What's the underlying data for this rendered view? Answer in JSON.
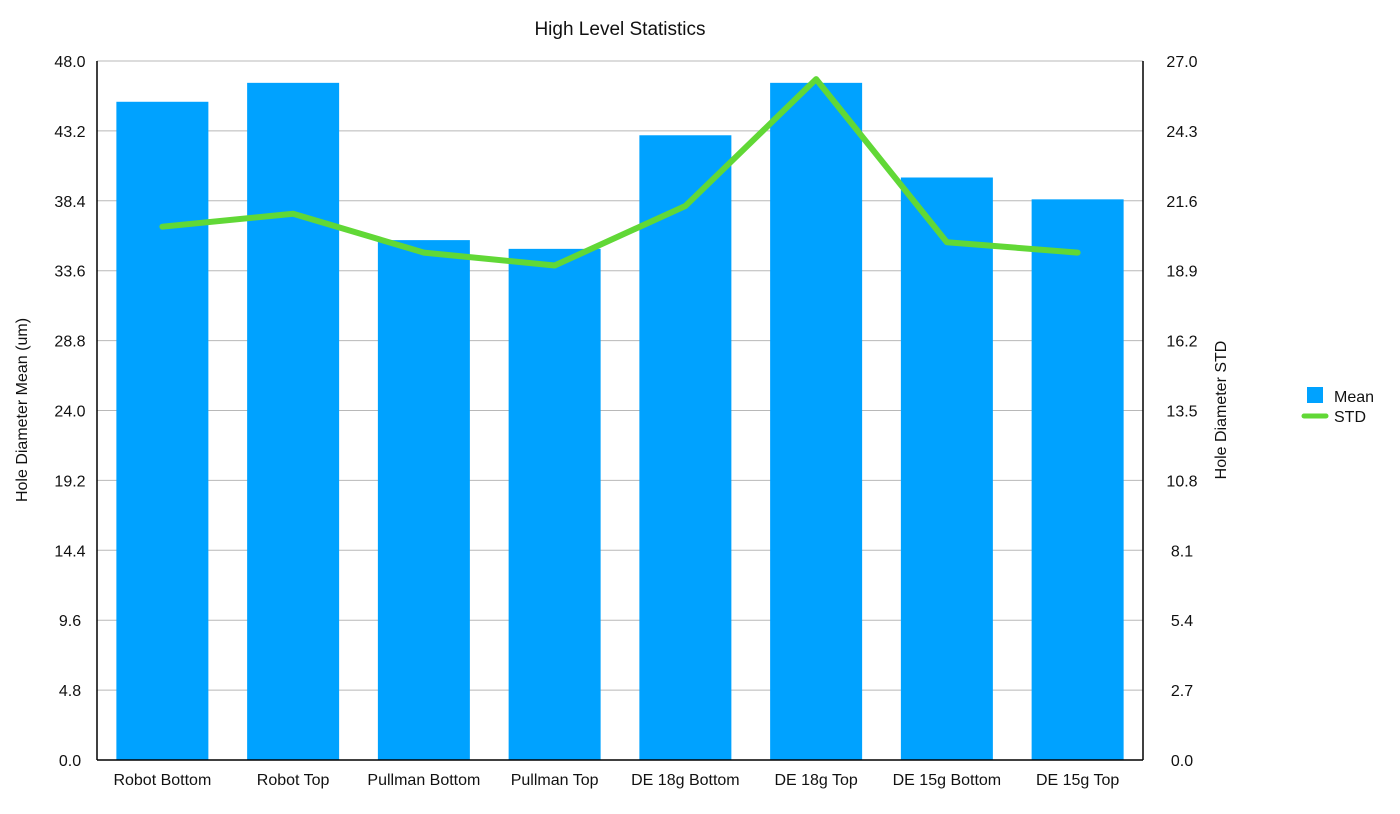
{
  "chart_data": {
    "type": "bar",
    "title": "High Level Statistics",
    "categories": [
      "Robot Bottom",
      "Robot Top",
      "Pullman Bottom",
      "Pullman Top",
      "DE 18g Bottom",
      "DE 18g Top",
      "DE 15g Bottom",
      "DE 15g Top"
    ],
    "series": [
      {
        "name": "Mean",
        "type": "bar",
        "axis": "left",
        "color": "#00A2FF",
        "values": [
          45.2,
          46.5,
          35.7,
          35.1,
          42.9,
          46.5,
          40.0,
          38.5
        ]
      },
      {
        "name": "STD",
        "type": "line",
        "axis": "right",
        "color": "#61D836",
        "values": [
          20.6,
          21.1,
          19.6,
          19.1,
          21.4,
          26.3,
          20.0,
          19.6
        ]
      }
    ],
    "ylabel": "Hole Diameter Mean (um)",
    "y2label": "Hole Diameter STD",
    "xlabel": "",
    "ylim": [
      0,
      48
    ],
    "y2lim": [
      0,
      27
    ],
    "yticks": [
      "0.0",
      "4.8",
      "9.6",
      "14.4",
      "19.2",
      "24.0",
      "28.8",
      "33.6",
      "38.4",
      "43.2",
      "48.0"
    ],
    "y2ticks": [
      "0.0",
      "2.7",
      "5.4",
      "8.1",
      "10.8",
      "13.5",
      "16.2",
      "18.9",
      "21.6",
      "24.3",
      "27.0"
    ],
    "grid": true,
    "legend_position": "right"
  }
}
